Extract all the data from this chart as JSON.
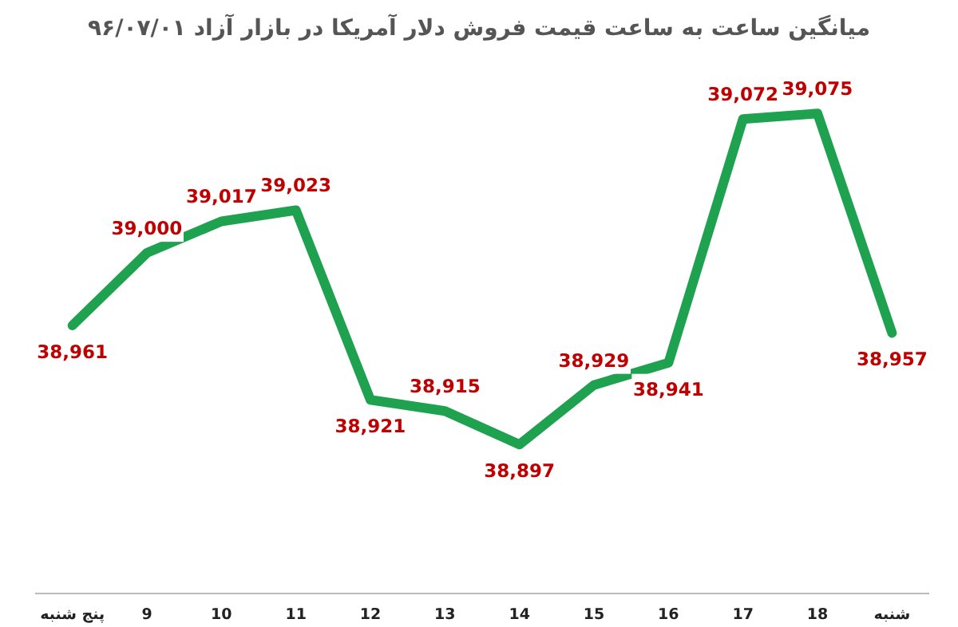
{
  "chart_data": {
    "type": "line",
    "title": "میانگین ساعت به ساعت قیمت فروش دلار آمریکا در بازار آزاد ۹۶/۰۷/۰۱",
    "categories": [
      "پنج شنبه",
      "9",
      "10",
      "11",
      "12",
      "13",
      "14",
      "15",
      "16",
      "17",
      "18",
      "شنبه"
    ],
    "values": [
      38961,
      39000,
      39017,
      39023,
      38921,
      38915,
      38897,
      38929,
      38941,
      39072,
      39075,
      38957
    ],
    "value_labels": [
      "38,961",
      "39,000",
      "39,017",
      "39,023",
      "38,921",
      "38,915",
      "38,897",
      "38,929",
      "38,941",
      "39,072",
      "39,075",
      "38,957"
    ],
    "color": "#1fa24f"
  }
}
